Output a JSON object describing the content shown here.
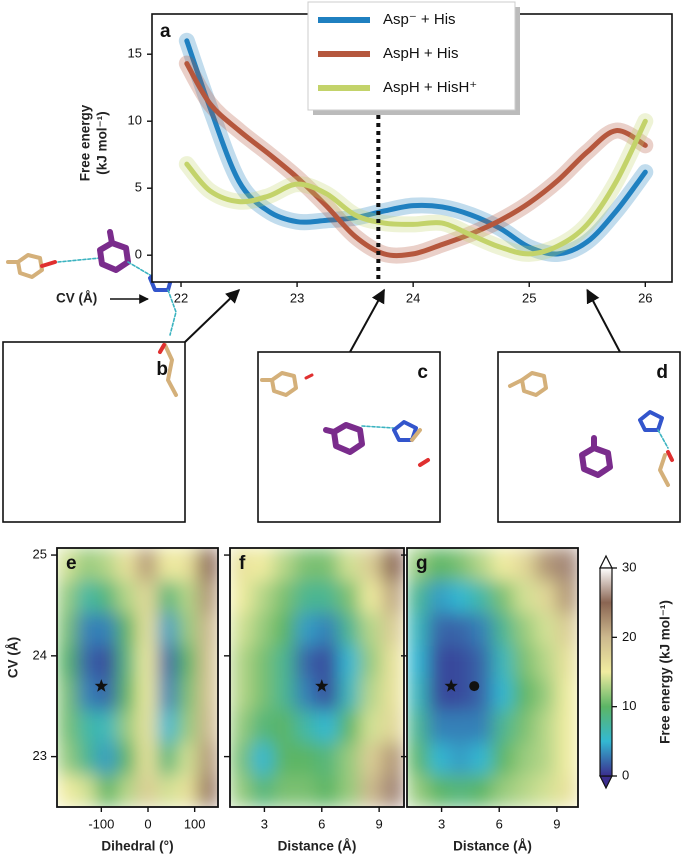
{
  "chart_data": [
    {
      "type": "line",
      "label": "a",
      "ylabel": [
        "Free energy",
        "(kJ mol⁻¹)"
      ],
      "xlabel": "CV (Å)",
      "x": [
        22.05,
        22.25,
        22.5,
        22.75,
        23,
        23.25,
        23.5,
        23.75,
        24,
        24.25,
        24.5,
        24.75,
        25,
        25.25,
        25.5,
        25.75,
        26
      ],
      "series": [
        {
          "name": "Asp⁻ + His",
          "color": "#1f80c0",
          "values": [
            16,
            11,
            5.5,
            3.3,
            2.5,
            2.6,
            2.8,
            3.3,
            3.7,
            3.6,
            3.0,
            2.0,
            0.6,
            0.1,
            1.0,
            3.3,
            6.2
          ]
        },
        {
          "name": "AspH + His",
          "color": "#b5573d",
          "values": [
            14.3,
            11.3,
            9.3,
            7.6,
            5.8,
            3.7,
            1.4,
            0.1,
            0.1,
            0.8,
            1.6,
            2.6,
            3.9,
            5.6,
            7.7,
            9.3,
            8.2
          ]
        },
        {
          "name": "AspH + HisH⁺",
          "color": "#c3d36a",
          "values": [
            6.8,
            4.8,
            4.0,
            4.4,
            5.3,
            4.6,
            3.0,
            2.4,
            2.3,
            2.4,
            1.5,
            0.6,
            0.1,
            0.7,
            2.3,
            5.5,
            10.0
          ]
        }
      ],
      "xlim": [
        21.75,
        26.23
      ],
      "ylim": [
        -2,
        18
      ],
      "xticks": [
        22,
        23,
        24,
        25,
        26
      ],
      "yticks": [
        0,
        5,
        10,
        15
      ],
      "vline": 23.7
    },
    {
      "type": "heatmap",
      "label": "e",
      "xlabel": "Dihedral (°)",
      "ylabel": "CV (Å)",
      "xlim": [
        -195,
        150
      ],
      "ylim": [
        22.5,
        25.07
      ],
      "xticks": [
        -100,
        0,
        100
      ],
      "yticks": [
        23,
        24,
        25
      ],
      "show_ytick_labels": true,
      "z": [
        [
          15,
          14,
          10,
          13,
          18,
          14,
          16,
          24
        ],
        [
          12,
          8,
          4,
          10,
          16,
          9,
          14,
          22
        ],
        [
          11,
          7,
          6,
          12,
          16,
          5,
          12,
          20
        ],
        [
          11,
          3,
          2,
          10,
          15,
          3,
          11,
          19
        ],
        [
          10,
          2,
          1,
          9,
          15,
          2,
          10,
          19
        ],
        [
          11,
          3,
          3,
          10,
          16,
          4,
          12,
          20
        ],
        [
          12,
          7,
          9,
          13,
          17,
          9,
          13,
          22
        ],
        [
          14,
          12,
          13,
          16,
          22,
          15,
          16,
          25
        ]
      ],
      "markers": [
        {
          "x": -100,
          "y": 23.7,
          "symbol": "star"
        }
      ]
    },
    {
      "type": "heatmap",
      "label": "f",
      "xlabel": "Distance (Å)",
      "xlim": [
        1.2,
        10.3
      ],
      "ylim": [
        22.5,
        25.07
      ],
      "xticks": [
        3,
        6,
        9
      ],
      "yticks": [
        23,
        24,
        25
      ],
      "show_ytick_labels": false,
      "z": [
        [
          12,
          9,
          11,
          11,
          10,
          12,
          20,
          26
        ],
        [
          11,
          5,
          10,
          10,
          9,
          12,
          18,
          22
        ],
        [
          12,
          9,
          10,
          7,
          5,
          10,
          14,
          17
        ],
        [
          13,
          11,
          8,
          3,
          1,
          6,
          13,
          16
        ],
        [
          13,
          11,
          8,
          2,
          1,
          5,
          12,
          16
        ],
        [
          14,
          12,
          10,
          4,
          3,
          8,
          13,
          18
        ],
        [
          15,
          13,
          11,
          8,
          8,
          11,
          15,
          21
        ],
        [
          16,
          15,
          13,
          11,
          11,
          14,
          18,
          25
        ]
      ],
      "markers": [
        {
          "x": 6,
          "y": 23.7,
          "symbol": "star"
        }
      ]
    },
    {
      "type": "heatmap",
      "label": "g",
      "xlabel": "Distance (Å)",
      "xlim": [
        1.2,
        10.1
      ],
      "ylim": [
        22.5,
        25.07
      ],
      "xticks": [
        3,
        6,
        9
      ],
      "yticks": [
        23,
        24,
        25
      ],
      "show_ytick_labels": false,
      "z": [
        [
          12,
          10,
          9,
          10,
          12,
          13,
          14,
          16
        ],
        [
          10,
          5,
          4,
          5,
          10,
          12,
          13,
          15
        ],
        [
          8,
          3,
          3,
          3,
          8,
          11,
          13,
          15
        ],
        [
          6,
          1,
          1,
          2,
          5,
          10,
          12,
          15
        ],
        [
          5,
          1,
          1,
          2,
          6,
          11,
          13,
          16
        ],
        [
          6,
          2,
          2,
          3,
          8,
          12,
          14,
          18
        ],
        [
          8,
          4,
          5,
          7,
          11,
          14,
          17,
          22
        ],
        [
          12,
          10,
          11,
          13,
          15,
          17,
          22,
          26
        ]
      ],
      "markers": [
        {
          "x": 3.5,
          "y": 23.7,
          "symbol": "star"
        },
        {
          "x": 4.7,
          "y": 23.7,
          "symbol": "circle"
        }
      ]
    }
  ],
  "colorbar": {
    "label": "Free energy (kJ mol⁻¹)",
    "zlim": [
      0,
      30
    ],
    "zticks": [
      0,
      10,
      20,
      30
    ],
    "colors": [
      "#3b2d8e",
      "#33b8d2",
      "#5cb565",
      "#f0eca0",
      "#cdb98e",
      "#8a6552",
      "#ffffff"
    ]
  },
  "structures": [
    {
      "label": "b",
      "cv": 22.5
    },
    {
      "label": "c",
      "cv": 23.75
    },
    {
      "label": "d",
      "cv": 25.5
    }
  ]
}
